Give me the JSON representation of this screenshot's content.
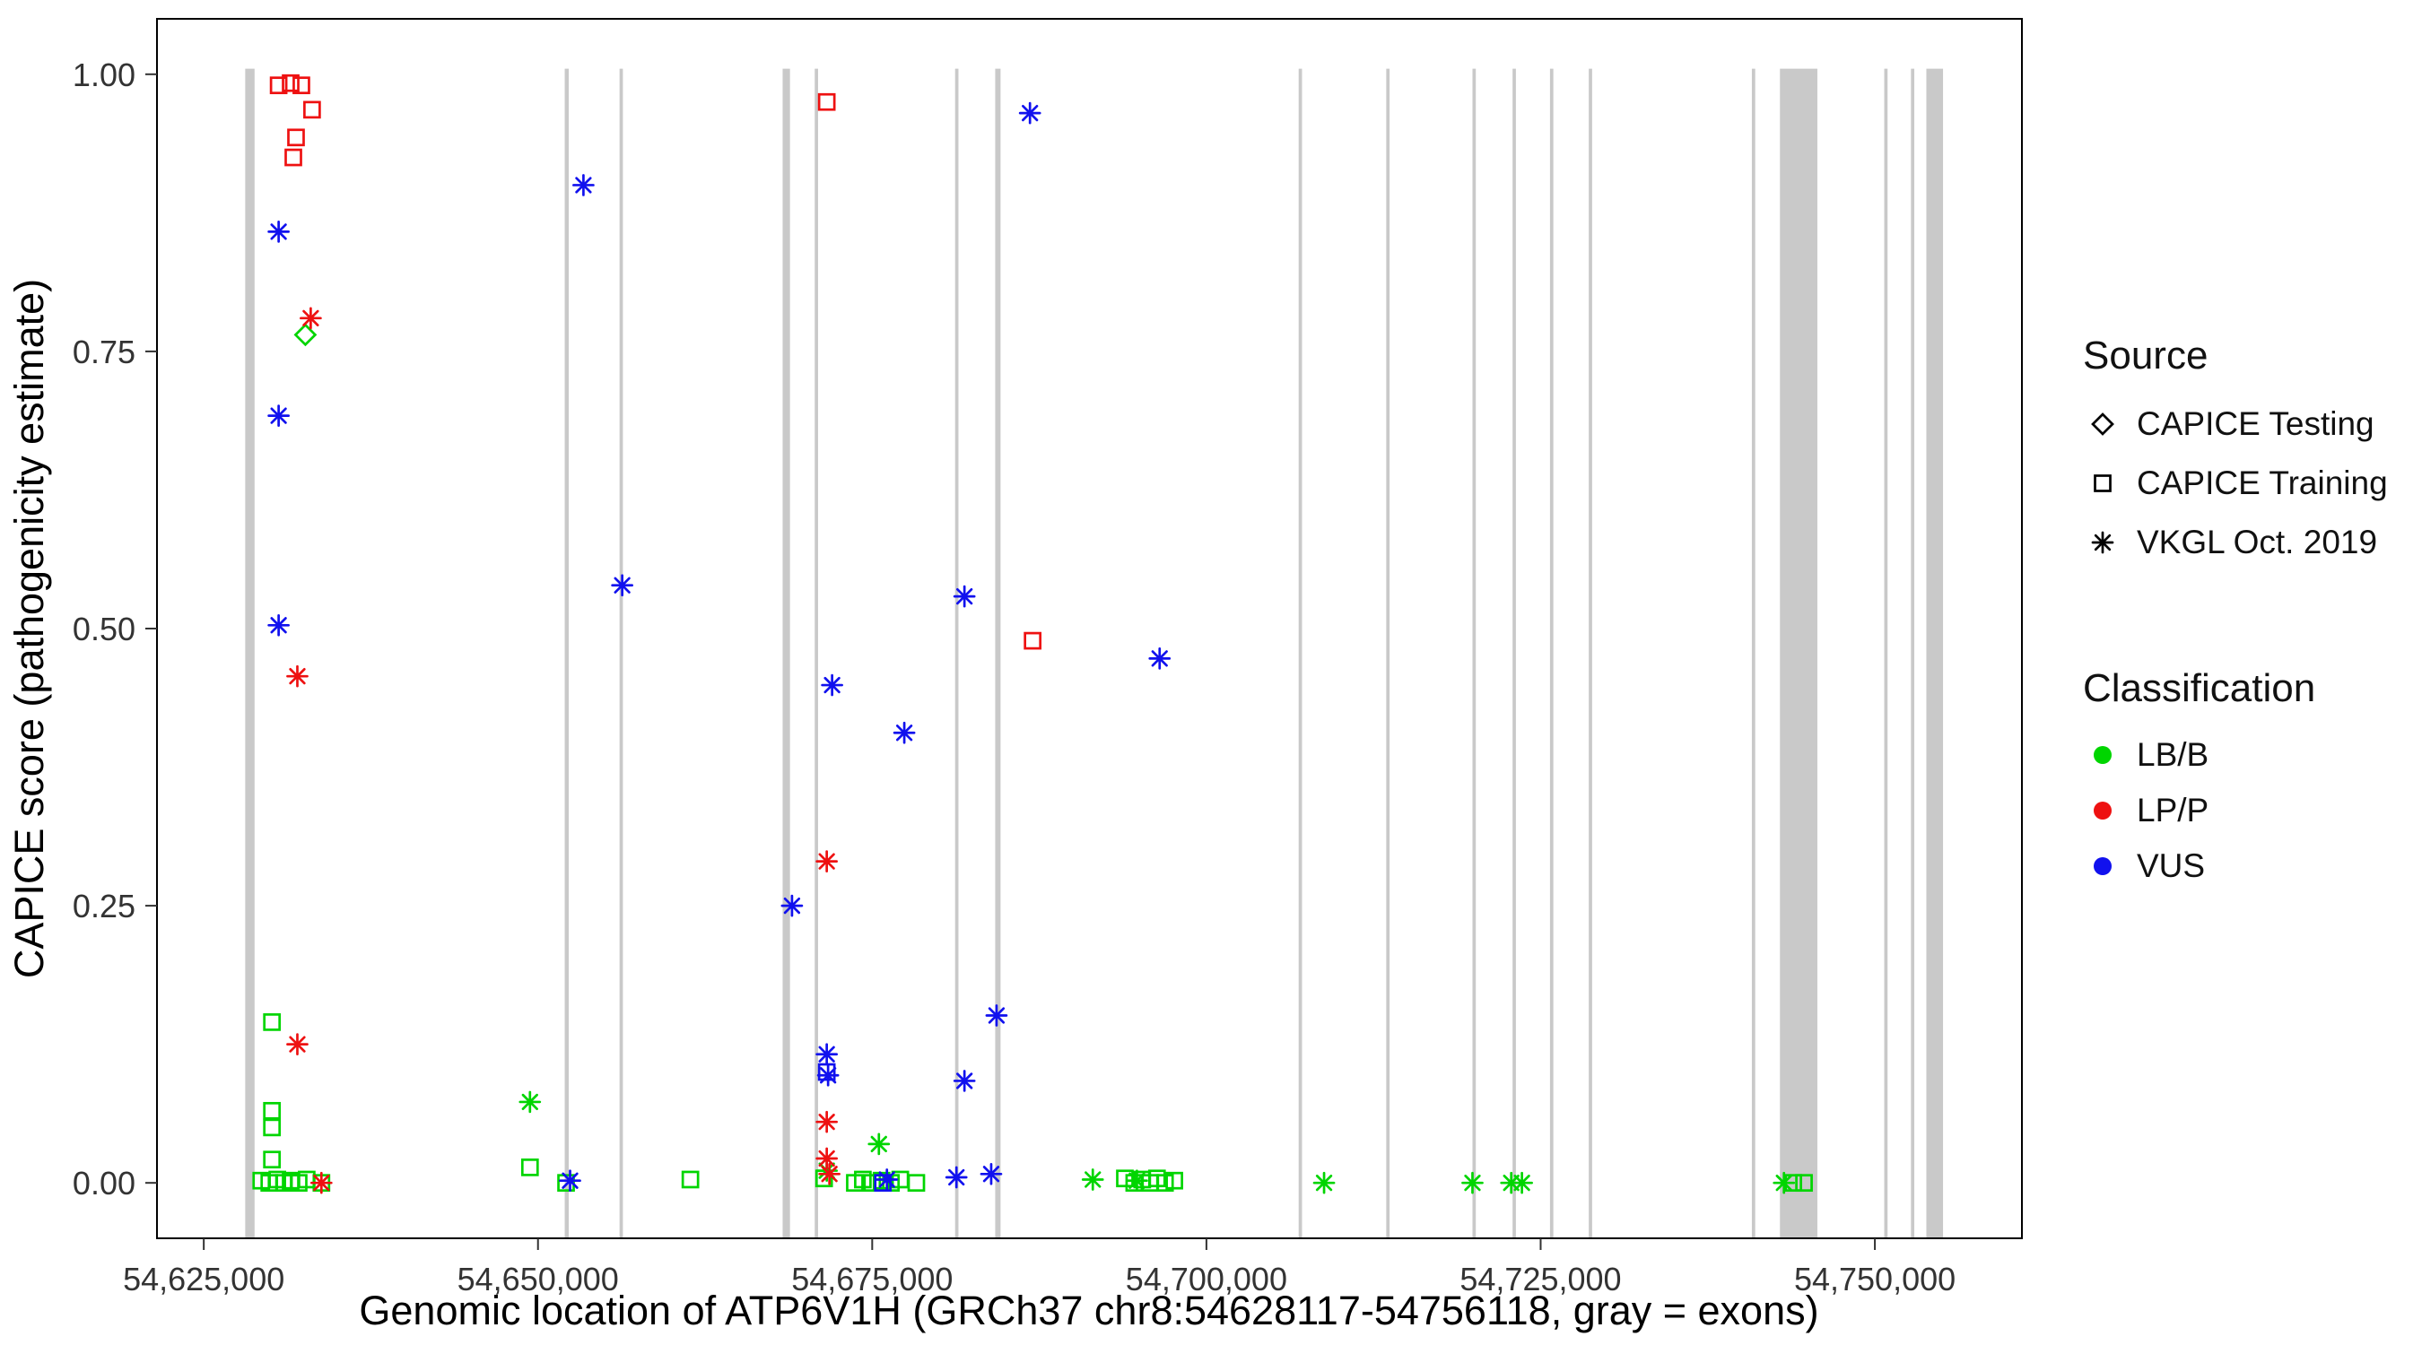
{
  "colors": {
    "lbb": "#00D500",
    "lpp": "#EE1111",
    "vus": "#1111EE",
    "exon": "#C9C9C9",
    "axis": "#000000",
    "tick_text": "#333333"
  },
  "legend": {
    "source_title": "Source",
    "source_items": [
      {
        "label": "CAPICE Testing",
        "shape": "diamond"
      },
      {
        "label": "CAPICE Training",
        "shape": "square"
      },
      {
        "label": "VKGL Oct. 2019",
        "shape": "asterisk"
      }
    ],
    "classification_title": "Classification",
    "classification_items": [
      {
        "label": "LB/B",
        "color_key": "lbb"
      },
      {
        "label": "LP/P",
        "color_key": "lpp"
      },
      {
        "label": "VUS",
        "color_key": "vus"
      }
    ]
  },
  "chart_data": {
    "type": "scatter",
    "title": "",
    "xlabel": "Genomic location of ATP6V1H (GRCh37 chr8:54628117-54756118, gray = exons)",
    "ylabel": "CAPICE score (pathogenicity estimate)",
    "xlim": [
      54621500,
      54761000
    ],
    "ylim": [
      -0.05,
      1.05
    ],
    "grid": false,
    "legend_position": "right",
    "x_ticks": [
      {
        "value": 54625000,
        "label": "54,625,000"
      },
      {
        "value": 54650000,
        "label": "54,650,000"
      },
      {
        "value": 54675000,
        "label": "54,675,000"
      },
      {
        "value": 54700000,
        "label": "54,700,000"
      },
      {
        "value": 54725000,
        "label": "54,725,000"
      },
      {
        "value": 54750000,
        "label": "54,750,000"
      }
    ],
    "y_ticks": [
      {
        "value": 0,
        "label": "0.00"
      },
      {
        "value": 0.25,
        "label": "0.25"
      },
      {
        "value": 0.5,
        "label": "0.50"
      },
      {
        "value": 0.75,
        "label": "0.75"
      },
      {
        "value": 1,
        "label": "1.00"
      }
    ],
    "exons": [
      [
        54628100,
        54628800
      ],
      [
        54652000,
        54652300
      ],
      [
        54656100,
        54656350
      ],
      [
        54668300,
        54668850
      ],
      [
        54670700,
        54670950
      ],
      [
        54681200,
        54681450
      ],
      [
        54684200,
        54684600
      ],
      [
        54706900,
        54707150
      ],
      [
        54713450,
        54713700
      ],
      [
        54719900,
        54720150
      ],
      [
        54722900,
        54723150
      ],
      [
        54725700,
        54725950
      ],
      [
        54728600,
        54728850
      ],
      [
        54740800,
        54741050
      ],
      [
        54742900,
        54745700
      ],
      [
        54750700,
        54750950
      ],
      [
        54752700,
        54752950
      ],
      [
        54753850,
        54755100
      ]
    ],
    "series": [
      {
        "source": "CAPICE Testing",
        "classification": "LB/B",
        "shape": "diamond",
        "color_key": "lbb",
        "points": [
          [
            54632600,
            0.765
          ]
        ]
      },
      {
        "source": "CAPICE Training",
        "classification": "LP/P",
        "shape": "square",
        "color_key": "lpp",
        "points": [
          [
            54630600,
            0.99
          ],
          [
            54631500,
            0.992
          ],
          [
            54632300,
            0.99
          ],
          [
            54633100,
            0.968
          ],
          [
            54631900,
            0.943
          ],
          [
            54631700,
            0.925
          ],
          [
            54671600,
            0.975
          ],
          [
            54687000,
            0.489
          ]
        ]
      },
      {
        "source": "CAPICE Training",
        "classification": "LB/B",
        "shape": "square",
        "color_key": "lbb",
        "points": [
          [
            54630100,
            0.145
          ],
          [
            54630100,
            0.065
          ],
          [
            54630100,
            0.05
          ],
          [
            54630100,
            0.021
          ],
          [
            54629300,
            0.002
          ],
          [
            54629900,
            0
          ],
          [
            54630500,
            0.003
          ],
          [
            54631000,
            0
          ],
          [
            54631500,
            0.002
          ],
          [
            54632100,
            0
          ],
          [
            54632700,
            0.003
          ],
          [
            54633800,
            0
          ],
          [
            54649400,
            0.014
          ],
          [
            54652100,
            0
          ],
          [
            54661400,
            0.003
          ],
          [
            54671400,
            0.004
          ],
          [
            54673700,
            0
          ],
          [
            54674300,
            0.003
          ],
          [
            54675000,
            0
          ],
          [
            54675700,
            0.002
          ],
          [
            54676400,
            0
          ],
          [
            54677100,
            0.003
          ],
          [
            54678300,
            0
          ],
          [
            54693900,
            0.004
          ],
          [
            54694600,
            0
          ],
          [
            54695200,
            0.003
          ],
          [
            54695800,
            0
          ],
          [
            54696300,
            0.004
          ],
          [
            54696900,
            0
          ],
          [
            54697600,
            0.002
          ],
          [
            54743900,
            0
          ],
          [
            54744700,
            0
          ]
        ]
      },
      {
        "source": "CAPICE Training",
        "classification": "VUS",
        "shape": "square",
        "color_key": "vus",
        "points": [
          [
            54671600,
            0.1
          ],
          [
            54675800,
            0
          ]
        ]
      },
      {
        "source": "VKGL Oct. 2019",
        "classification": "LB/B",
        "shape": "asterisk",
        "color_key": "lbb",
        "points": [
          [
            54649400,
            0.073
          ],
          [
            54675500,
            0.035
          ],
          [
            54671600,
            0.011
          ],
          [
            54691500,
            0.003
          ],
          [
            54694800,
            0.002
          ],
          [
            54708800,
            0
          ],
          [
            54719900,
            0
          ],
          [
            54722800,
            0
          ],
          [
            54723600,
            0
          ],
          [
            54743200,
            0
          ]
        ]
      },
      {
        "source": "VKGL Oct. 2019",
        "classification": "LP/P",
        "shape": "asterisk",
        "color_key": "lpp",
        "points": [
          [
            54633000,
            0.78
          ],
          [
            54632000,
            0.457
          ],
          [
            54632000,
            0.125
          ],
          [
            54633800,
            0
          ],
          [
            54671600,
            0.29
          ],
          [
            54671600,
            0.055
          ],
          [
            54671600,
            0.022
          ],
          [
            54671800,
            0.008
          ]
        ]
      },
      {
        "source": "VKGL Oct. 2019",
        "classification": "VUS",
        "shape": "asterisk",
        "color_key": "vus",
        "points": [
          [
            54630600,
            0.858
          ],
          [
            54630600,
            0.692
          ],
          [
            54630600,
            0.503
          ],
          [
            54653400,
            0.9
          ],
          [
            54656300,
            0.539
          ],
          [
            54686800,
            0.965
          ],
          [
            54681900,
            0.529
          ],
          [
            54696500,
            0.473
          ],
          [
            54672000,
            0.449
          ],
          [
            54677400,
            0.406
          ],
          [
            54669000,
            0.25
          ],
          [
            54684300,
            0.151
          ],
          [
            54671600,
            0.116
          ],
          [
            54671700,
            0.097
          ],
          [
            54681900,
            0.092
          ],
          [
            54652400,
            0.002
          ],
          [
            54676100,
            0.003
          ],
          [
            54681300,
            0.005
          ],
          [
            54683900,
            0.008
          ]
        ]
      }
    ]
  }
}
